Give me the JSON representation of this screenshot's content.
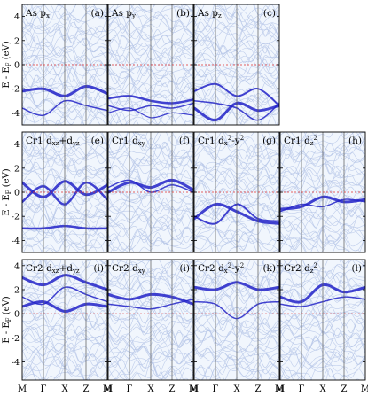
{
  "chart_data": {
    "type": "line",
    "layout": "3 rows x 4 columns of band-structure panels; first row has 3 panels",
    "y_unit": "eV",
    "x_high_symmetry_points": [
      "M",
      "Γ",
      "X",
      "Z",
      "M"
    ],
    "fermi_level": 0,
    "colors": {
      "background_bands": "#b7c7e8",
      "projected_bands": "#2222c8",
      "fermi_line": "#e03030",
      "panel_fill": "#f1f6fd"
    },
    "rows": [
      {
        "ylabel": {
          "main": "E - E",
          "sub": "F",
          "unit": " (eV)"
        },
        "ylim": [
          -5,
          5
        ],
        "yticks": [
          -4,
          -2,
          0,
          2,
          4
        ],
        "panels": [
          {
            "tag": "(a)",
            "label": {
              "pre": "As p",
              "sub": "x",
              "sup": "",
              "post": ""
            },
            "projected_bands": [
              {
                "y": [
                  -2.2,
                  -2.0,
                  -2.6,
                  -1.8,
                  -2.4
                ],
                "weight": 3
              },
              {
                "y": [
                  -3.6,
                  -4.2,
                  -3.0,
                  -3.4,
                  -3.8
                ],
                "weight": 1.5
              }
            ]
          },
          {
            "tag": "(b)",
            "label": {
              "pre": "As p",
              "sub": "y",
              "sup": "",
              "post": ""
            },
            "projected_bands": [
              {
                "y": [
                  -2.8,
                  -2.6,
                  -3.0,
                  -3.2,
                  -2.9
                ],
                "weight": 2.5
              },
              {
                "y": [
                  -3.4,
                  -3.8,
                  -3.4,
                  -3.6,
                  -3.2
                ],
                "weight": 1.5
              },
              {
                "y": [
                  -4.0,
                  -3.6,
                  -4.4,
                  -4.0,
                  -4.2
                ],
                "weight": 1.2
              }
            ]
          },
          {
            "tag": "(c)",
            "label": {
              "pre": "As p",
              "sub": "z",
              "sup": "",
              "post": ""
            },
            "projected_bands": [
              {
                "y": [
                  -3.6,
                  -4.6,
                  -3.2,
                  -3.8,
                  -3.4
                ],
                "weight": 3
              },
              {
                "y": [
                  -2.2,
                  -1.6,
                  -2.6,
                  -2.0,
                  -3.4
                ],
                "weight": 2
              },
              {
                "y": [
                  -3.0,
                  -3.2,
                  -3.6,
                  -4.6,
                  -3.2
                ],
                "weight": 1.5
              }
            ]
          }
        ]
      },
      {
        "ylabel": {
          "main": "E - E",
          "sub": "F",
          "unit": " (eV)"
        },
        "ylim": [
          -5,
          5
        ],
        "yticks": [
          -4,
          -2,
          0,
          2,
          4
        ],
        "panels": [
          {
            "tag": "(e)",
            "label": {
              "pre": "Cr1 d",
              "sub": "xz",
              "sup": "",
              "post": "+d",
              "sub2": "yz"
            },
            "projected_bands": [
              {
                "y": [
                  0.8,
                  -0.4,
                  0.9,
                  -0.2,
                  0.6
                ],
                "weight": 3
              },
              {
                "y": [
                  -0.8,
                  0.5,
                  -1.0,
                  0.8,
                  -0.6
                ],
                "weight": 2.5
              },
              {
                "y": [
                  -3.0,
                  -3.0,
                  -2.8,
                  -3.0,
                  -3.0
                ],
                "weight": 2.5
              }
            ]
          },
          {
            "tag": "(f)",
            "label": {
              "pre": "Cr1 d",
              "sub": "xy",
              "sup": "",
              "post": ""
            },
            "projected_bands": [
              {
                "y": [
                  0.0,
                  0.8,
                  0.4,
                  1.0,
                  0.2
                ],
                "weight": 3
              },
              {
                "y": [
                  0.4,
                  1.0,
                  0.0,
                  0.6,
                  0.0
                ],
                "weight": 1.5
              }
            ]
          },
          {
            "tag": "(g)",
            "label": {
              "pre": "Cr1 d",
              "sub": "x",
              "sup": "2",
              "post": "-y",
              "sup2": "2"
            },
            "projected_bands": [
              {
                "y": [
                  -2.2,
                  -1.0,
                  -1.6,
                  -2.4,
                  -2.6
                ],
                "weight": 3
              },
              {
                "y": [
                  -2.0,
                  -2.6,
                  -1.0,
                  -2.2,
                  -2.4
                ],
                "weight": 2
              }
            ]
          },
          {
            "tag": "(h)",
            "label": {
              "pre": "Cr1 d",
              "sub": "z",
              "sup": "2",
              "post": ""
            },
            "projected_bands": [
              {
                "y": [
                  -1.4,
                  -1.2,
                  -0.4,
                  -0.8,
                  -0.6
                ],
                "weight": 3
              },
              {
                "y": [
                  -1.6,
                  -1.0,
                  -1.2,
                  -0.6,
                  -0.8
                ],
                "weight": 1.5
              }
            ]
          }
        ]
      },
      {
        "ylabel": {
          "main": "E - E",
          "sub": "F",
          "unit": " (eV)"
        },
        "ylim": [
          -5.5,
          4.5
        ],
        "yticks": [
          -4,
          -2,
          0,
          2,
          4
        ],
        "panels": [
          {
            "tag": "(i)",
            "label": {
              "pre": "Cr2 d",
              "sub": "xz",
              "sup": "",
              "post": "+d",
              "sub2": "yz"
            },
            "projected_bands": [
              {
                "y": [
                  3.0,
                  2.4,
                  3.2,
                  2.6,
                  2.0
                ],
                "weight": 3
              },
              {
                "y": [
                  0.6,
                  1.0,
                  0.2,
                  0.8,
                  0.6
                ],
                "weight": 3
              },
              {
                "y": [
                  1.4,
                  0.8,
                  2.2,
                  1.6,
                  1.0
                ],
                "weight": 1.5
              }
            ]
          },
          {
            "tag": "(i)",
            "label": {
              "pre": "Cr2 d",
              "sub": "xy",
              "sup": "",
              "post": ""
            },
            "projected_bands": [
              {
                "y": [
                  1.6,
                  1.2,
                  1.6,
                  1.4,
                  0.8
                ],
                "weight": 3
              },
              {
                "y": [
                  0.8,
                  0.6,
                  0.4,
                  0.8,
                  1.2
                ],
                "weight": 1.5
              }
            ]
          },
          {
            "tag": "(k)",
            "label": {
              "pre": "Cr2 d",
              "sub": "x",
              "sup": "2",
              "post": "-y",
              "sup2": "2"
            },
            "projected_bands": [
              {
                "y": [
                  2.2,
                  2.0,
                  2.6,
                  2.0,
                  2.2
                ],
                "weight": 3
              },
              {
                "y": [
                  1.0,
                  0.8,
                  -0.4,
                  0.8,
                  1.0
                ],
                "weight": 1.5
              }
            ]
          },
          {
            "tag": "(l)",
            "label": {
              "pre": "Cr2 d",
              "sub": "z",
              "sup": "2",
              "post": ""
            },
            "projected_bands": [
              {
                "y": [
                  1.4,
                  1.0,
                  2.4,
                  1.8,
                  2.2
                ],
                "weight": 3
              },
              {
                "y": [
                  0.8,
                  0.6,
                  1.0,
                  1.4,
                  1.2
                ],
                "weight": 1.5
              }
            ]
          }
        ]
      }
    ]
  }
}
